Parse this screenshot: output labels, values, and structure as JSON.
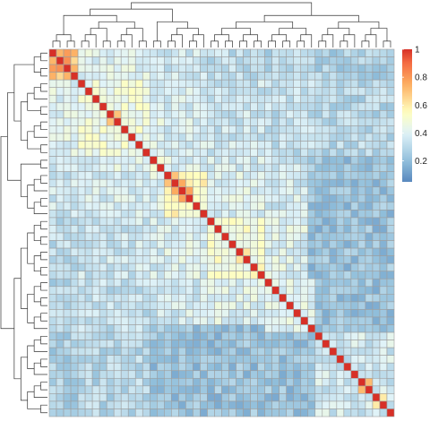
{
  "chart_data": {
    "type": "heatmap",
    "title": "",
    "xlabel": "",
    "ylabel": "",
    "n": 48,
    "row_labels_shown": false,
    "col_labels_shown": false,
    "diagonal_value": 1,
    "blocks": [
      {
        "range": [
          0,
          3
        ],
        "value": 0.72
      },
      {
        "range": [
          4,
          13
        ],
        "value": 0.47
      },
      {
        "range": [
          14,
          15
        ],
        "value": 0.5
      },
      {
        "range": [
          16,
          21
        ],
        "value": 0.55
      },
      {
        "range": [
          22,
          29
        ],
        "value": 0.5
      },
      {
        "range": [
          30,
          36
        ],
        "value": 0.42
      },
      {
        "range": [
          37,
          47
        ],
        "value": 0.36
      }
    ],
    "strong_pairs": [
      {
        "i": 2,
        "j": 1,
        "value": 0.82
      },
      {
        "i": 9,
        "j": 8,
        "value": 0.7
      },
      {
        "i": 16,
        "j": 17,
        "value": 0.7
      },
      {
        "i": 17,
        "j": 18,
        "value": 0.76
      },
      {
        "i": 18,
        "j": 19,
        "value": 0.78
      },
      {
        "i": 26,
        "j": 27,
        "value": 0.62
      },
      {
        "i": 43,
        "j": 44,
        "value": 0.72
      },
      {
        "i": 45,
        "j": 46,
        "value": 0.6
      }
    ],
    "low_band": {
      "rows": [
        36,
        47
      ],
      "cols": [
        14,
        47
      ],
      "value": 0.22
    },
    "color_scale": {
      "stops": [
        {
          "value": 0.0,
          "color": "#4575b4"
        },
        {
          "value": 0.2,
          "color": "#91bfdb"
        },
        {
          "value": 0.4,
          "color": "#e0f3f8"
        },
        {
          "value": 0.55,
          "color": "#ffffbf"
        },
        {
          "value": 0.75,
          "color": "#fdae61"
        },
        {
          "value": 0.9,
          "color": "#f46d43"
        },
        {
          "value": 1.0,
          "color": "#d73027"
        }
      ],
      "legend_ticks": [
        {
          "value": 1,
          "label": "1"
        },
        {
          "value": 0.8,
          "label": "0.8"
        },
        {
          "value": 0.6,
          "label": "0.6"
        },
        {
          "value": 0.4,
          "label": "0.4"
        },
        {
          "value": 0.2,
          "label": "0.2"
        }
      ],
      "legend_range": [
        0.05,
        1.0
      ]
    },
    "dendrogram": {
      "rows": true,
      "cols": true
    },
    "grid_color": "#9e9e9e",
    "dendrogram_color": "#333333"
  }
}
